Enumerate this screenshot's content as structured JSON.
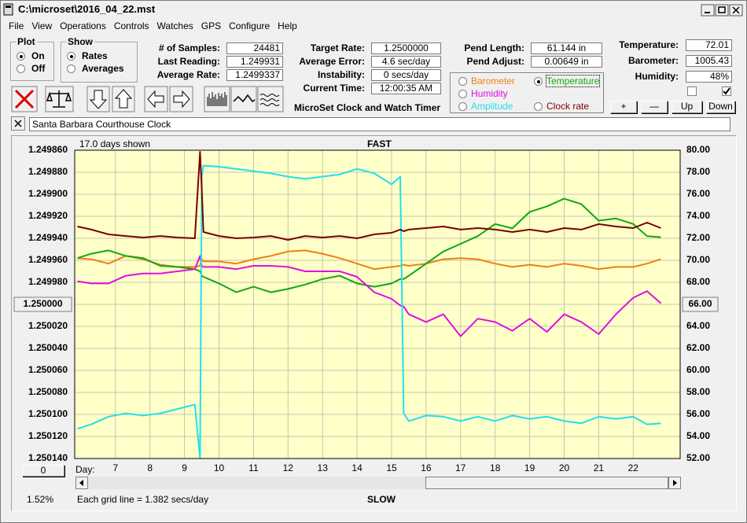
{
  "window": {
    "title": "C:\\microset\\2016_04_22.mst"
  },
  "menu": [
    "File",
    "View",
    "Operations",
    "Controls",
    "Watches",
    "GPS",
    "Configure",
    "Help"
  ],
  "plot_group": {
    "title": "Plot",
    "options": [
      "On",
      "Off"
    ],
    "selected": 0
  },
  "show_group": {
    "title": "Show",
    "options": [
      "Rates",
      "Averages"
    ],
    "selected": 0
  },
  "readouts": {
    "samples": [
      {
        "label": "# of Samples:",
        "value": "24481"
      },
      {
        "label": "Last Reading:",
        "value": "1.249931"
      },
      {
        "label": "Average Rate:",
        "value": "1.2499337"
      }
    ],
    "timing": [
      {
        "label": "Target Rate:",
        "value": "1.2500000"
      },
      {
        "label": "Average Error:",
        "value": "4.6 sec/day"
      },
      {
        "label": "Instability:",
        "value": "0 secs/day"
      },
      {
        "label": "Current Time:",
        "value": "12:00:35 AM"
      }
    ],
    "pendulum": [
      {
        "label": "Pend Length:",
        "value": "61.144 in"
      },
      {
        "label": "Pend Adjust:",
        "value": "0.00649 in"
      }
    ],
    "environment": [
      {
        "label": "Temperature:",
        "value": "72.01"
      },
      {
        "label": "Barometer:",
        "value": "1005.43"
      },
      {
        "label": "Humidity:",
        "value": "48%"
      }
    ]
  },
  "app_name": "MicroSet Clock and Watch Timer",
  "checkboxes": [
    false,
    true
  ],
  "adjust_buttons": [
    "+",
    "—",
    "Up",
    "Down"
  ],
  "clock_name": "Santa Barbara Courthouse Clock",
  "chart_data": {
    "type": "line",
    "top_label": "FAST",
    "bottom_label": "SLOW",
    "span_note": "17.0 days shown",
    "x_label": "Day:",
    "footer": "Each grid line = 1.382 secs/day",
    "scroll_percent": "1.52%",
    "offset_button": "0",
    "selected_series": 1,
    "button_tick": {
      "y": 7,
      "y2": 7
    },
    "grid": true,
    "plot_color": "#ffffc8",
    "xlim": [
      5.82,
      23.36
    ],
    "xticks": [
      7,
      8,
      9,
      10,
      11,
      12,
      13,
      14,
      15,
      16,
      17,
      18,
      19,
      20,
      21,
      22
    ],
    "ylim": [
      1.24986,
      1.25014
    ],
    "y_inverted": true,
    "yticks": [
      {
        "value": 1.24986,
        "label": "1.249860"
      },
      {
        "value": 1.24988,
        "label": "1.249880"
      },
      {
        "value": 1.2499,
        "label": "1.249900"
      },
      {
        "value": 1.24992,
        "label": "1.249920"
      },
      {
        "value": 1.24994,
        "label": "1.249940"
      },
      {
        "value": 1.24996,
        "label": "1.249960"
      },
      {
        "value": 1.24998,
        "label": "1.249980"
      },
      {
        "value": 1.25,
        "label": "1.250000"
      },
      {
        "value": 1.25002,
        "label": "1.250020"
      },
      {
        "value": 1.25004,
        "label": "1.250040"
      },
      {
        "value": 1.25006,
        "label": "1.250060"
      },
      {
        "value": 1.25008,
        "label": "1.250080"
      },
      {
        "value": 1.2501,
        "label": "1.250100"
      },
      {
        "value": 1.25012,
        "label": "1.250120"
      },
      {
        "value": 1.25014,
        "label": "1.250140"
      }
    ],
    "y2lim": [
      52,
      80
    ],
    "y2ticks": [
      {
        "value": 80,
        "label": "80.00"
      },
      {
        "value": 78,
        "label": "78.00"
      },
      {
        "value": 76,
        "label": "76.00"
      },
      {
        "value": 74,
        "label": "74.00"
      },
      {
        "value": 72,
        "label": "72.00"
      },
      {
        "value": 70,
        "label": "70.00"
      },
      {
        "value": 68,
        "label": "68.00"
      },
      {
        "value": 66,
        "label": "66.00"
      },
      {
        "value": 64,
        "label": "64.00"
      },
      {
        "value": 62,
        "label": "62.00"
      },
      {
        "value": 60,
        "label": "60.00"
      },
      {
        "value": 58,
        "label": "58.00"
      },
      {
        "value": 56,
        "label": "56.00"
      },
      {
        "value": 54,
        "label": "54.00"
      },
      {
        "value": 52,
        "label": "52.00"
      }
    ],
    "x": [
      5.9,
      6.3,
      6.8,
      7.3,
      7.8,
      8.3,
      8.8,
      9.3,
      9.45,
      9.5,
      9.55,
      10,
      10.5,
      11,
      11.5,
      12,
      12.5,
      13,
      13.5,
      14,
      14.5,
      15,
      15.25,
      15.35,
      15.5,
      16,
      16.5,
      17,
      17.5,
      18,
      18.5,
      19,
      19.5,
      20,
      20.5,
      21,
      21.5,
      22,
      22.4,
      22.8
    ],
    "series": [
      {
        "name": "Barometer",
        "color": "#f08010",
        "axis": "y2",
        "values": [
          70.2,
          70.1,
          69.7,
          70.4,
          70.1,
          69.6,
          69.4,
          69.4,
          69.5,
          70.1,
          69.9,
          69.9,
          69.7,
          70.1,
          70.4,
          70.8,
          70.9,
          70.6,
          70.2,
          69.7,
          69.2,
          69.4,
          69.5,
          69.6,
          69.5,
          69.7,
          70.1,
          70.2,
          70.1,
          69.7,
          69.4,
          69.6,
          69.4,
          69.7,
          69.5,
          69.2,
          69.4,
          69.4,
          69.7,
          70.1
        ]
      },
      {
        "name": "Temperature",
        "color": "#10a810",
        "axis": "y2",
        "values": [
          70.2,
          70.6,
          70.9,
          70.4,
          70.2,
          69.5,
          69.4,
          69.2,
          69.0,
          68.6,
          68.5,
          67.9,
          67.1,
          67.6,
          67.1,
          67.4,
          67.8,
          68.3,
          68.6,
          67.9,
          67.6,
          67.9,
          68.3,
          68.3,
          68.6,
          69.7,
          70.8,
          71.5,
          72.2,
          73.3,
          72.9,
          74.4,
          74.9,
          75.6,
          75.1,
          73.6,
          73.8,
          73.3,
          72.2,
          72.1
        ]
      },
      {
        "name": "Humidity",
        "color": "#e010e0",
        "axis": "y2",
        "values": [
          68.1,
          67.9,
          67.9,
          68.6,
          68.8,
          68.8,
          69.0,
          69.2,
          70.4,
          69.5,
          69.4,
          69.4,
          69.2,
          69.5,
          69.5,
          69.4,
          69.0,
          69.0,
          69.0,
          68.5,
          67.1,
          66.5,
          65.9,
          65.8,
          65.1,
          64.4,
          65.1,
          63.1,
          64.7,
          64.4,
          63.6,
          64.7,
          63.5,
          65.1,
          64.4,
          63.3,
          65.1,
          66.6,
          67.2,
          66.1
        ]
      },
      {
        "name": "Amplitude",
        "color": "#20e0f0",
        "axis": "y2",
        "values": [
          54.7,
          55.1,
          55.8,
          56.1,
          55.9,
          56.1,
          56.5,
          56.9,
          52.0,
          77.6,
          78.6,
          78.5,
          78.3,
          78.1,
          77.9,
          77.6,
          77.4,
          77.6,
          77.8,
          78.3,
          77.9,
          76.9,
          77.6,
          56.1,
          55.4,
          55.9,
          55.8,
          55.4,
          55.8,
          55.4,
          55.9,
          55.6,
          55.8,
          55.4,
          55.2,
          55.8,
          55.6,
          55.8,
          55.1,
          55.2
        ]
      },
      {
        "name": "Clock rate",
        "color": "#7a0000",
        "axis": "y",
        "values": [
          1.2499293,
          1.2499321,
          1.2499364,
          1.2499379,
          1.2499393,
          1.2499379,
          1.2499393,
          1.24994,
          1.2498614,
          1.249895,
          1.2499343,
          1.2499379,
          1.24994,
          1.2499393,
          1.2499379,
          1.2499414,
          1.2499379,
          1.2499393,
          1.2499379,
          1.24994,
          1.2499364,
          1.249935,
          1.2499321,
          1.2499336,
          1.2499321,
          1.2499307,
          1.2499293,
          1.2499321,
          1.2499307,
          1.2499321,
          1.2499343,
          1.2499321,
          1.2499343,
          1.2499307,
          1.2499321,
          1.2499271,
          1.2499293,
          1.2499307,
          1.2499257,
          1.2499307
        ]
      }
    ]
  }
}
